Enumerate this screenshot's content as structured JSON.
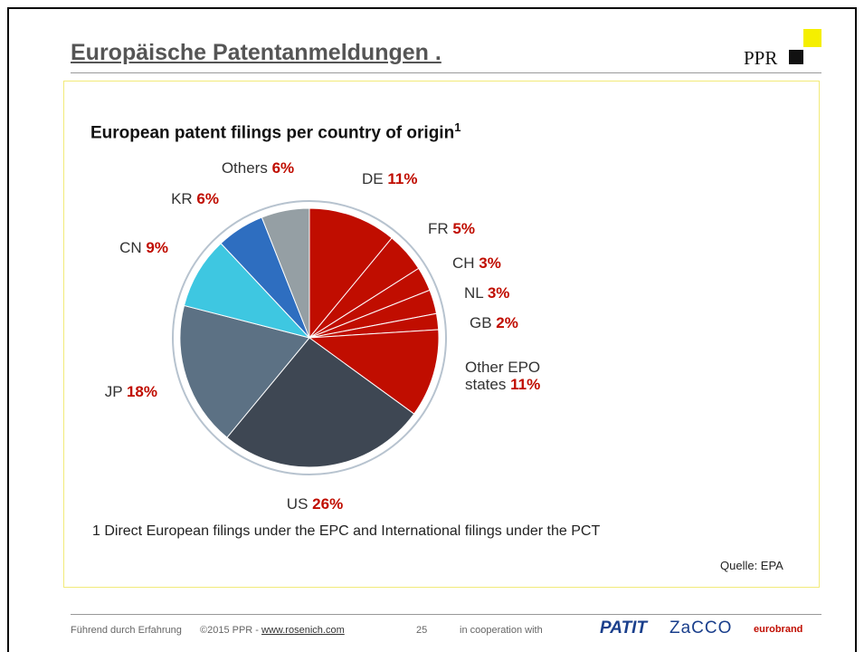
{
  "slide_title": "Europäische Patentanmeldungen .",
  "logo": "PPR",
  "chart_data": {
    "type": "pie",
    "title": "European patent filings per country of origin",
    "title_marker": "1",
    "categories": [
      "DE",
      "FR",
      "CH",
      "NL",
      "GB",
      "Other EPO states",
      "US",
      "JP",
      "CN",
      "KR",
      "Others"
    ],
    "values": [
      11,
      5,
      3,
      3,
      2,
      11,
      26,
      18,
      9,
      6,
      6
    ],
    "value_labels": [
      "11%",
      "5%",
      "3%",
      "3%",
      "2%",
      "11%",
      "26%",
      "18%",
      "9%",
      "6%",
      "6%"
    ],
    "colors": [
      "#c00d00",
      "#c00d00",
      "#c00d00",
      "#c00d00",
      "#c00d00",
      "#c00d00",
      "#3e4753",
      "#5c7184",
      "#3ec7e1",
      "#2e6ec0",
      "#959fa4"
    ],
    "footnote": "1 Direct European filings under the EPC and International filings under the PCT",
    "source": "Quelle: EPA"
  },
  "footer": {
    "tagline": "Führend durch Erfahrung",
    "copyright": "©2015 PPR - ",
    "link": "www.rosenich.com",
    "page": "25",
    "cooperation": "in cooperation with",
    "partner1": "PATIT",
    "partner2": "ZaCCO",
    "partner3": "eurobrand"
  }
}
